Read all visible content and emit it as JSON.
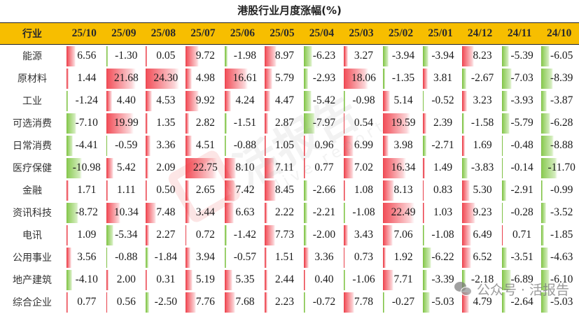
{
  "title": "港股行业月度涨幅(%)",
  "header": {
    "industry_label": "行业",
    "months": [
      "25/10",
      "25/09",
      "25/08",
      "25/07",
      "25/06",
      "25/05",
      "25/04",
      "25/03",
      "25/02",
      "25/01",
      "24/12",
      "24/11",
      "24/10"
    ]
  },
  "rows": [
    {
      "industry": "能源",
      "values": [
        "6.56",
        "-1.30",
        "0.05",
        "9.72",
        "-1.98",
        "8.97",
        "-6.23",
        "3.27",
        "-3.94",
        "-3.94",
        "8.23",
        "-5.39",
        "-6.05"
      ]
    },
    {
      "industry": "原材料",
      "values": [
        "1.44",
        "21.68",
        "24.30",
        "4.98",
        "16.61",
        "5.79",
        "-2.93",
        "18.06",
        "-1.35",
        "3.81",
        "-2.67",
        "-7.03",
        "-8.39"
      ]
    },
    {
      "industry": "工业",
      "values": [
        "-1.24",
        "4.40",
        "4.53",
        "9.92",
        "4.24",
        "4.47",
        "-5.42",
        "-0.98",
        "5.14",
        "-0.52",
        "3.23",
        "-3.93",
        "-3.87"
      ]
    },
    {
      "industry": "可选消费",
      "values": [
        "-7.10",
        "19.99",
        "1.35",
        "2.82",
        "-1.51",
        "2.87",
        "-7.97",
        "0.54",
        "19.59",
        "2.39",
        "-1.58",
        "-5.79",
        "-6.28"
      ]
    },
    {
      "industry": "日常消费",
      "values": [
        "-4.41",
        "-0.59",
        "3.36",
        "4.51",
        "-0.88",
        "1.05",
        "0.96",
        "6.99",
        "3.98",
        "-2.71",
        "1.69",
        "-0.48",
        "-8.88"
      ]
    },
    {
      "industry": "医疗保健",
      "values": [
        "-10.98",
        "5.42",
        "2.09",
        "22.75",
        "8.10",
        "7.11",
        "0.77",
        "7.02",
        "16.34",
        "1.49",
        "-3.83",
        "-0.14",
        "-11.70"
      ]
    },
    {
      "industry": "金融",
      "values": [
        "1.71",
        "1.11",
        "0.50",
        "2.65",
        "7.42",
        "8.45",
        "-2.66",
        "1.08",
        "8.13",
        "0.83",
        "5.30",
        "-2.91",
        "-0.99"
      ]
    },
    {
      "industry": "资讯科技",
      "values": [
        "-8.72",
        "10.34",
        "7.48",
        "3.44",
        "6.63",
        "2.22",
        "-2.21",
        "-1.08",
        "22.49",
        "1.03",
        "9.23",
        "-0.28",
        "-3.52"
      ]
    },
    {
      "industry": "电讯",
      "values": [
        "1.09",
        "-5.34",
        "2.27",
        "0.72",
        "-1.42",
        "7.73",
        "-2.00",
        "3.43",
        "7.06",
        "-1.08",
        "6.49",
        "0.71",
        "-1.85"
      ]
    },
    {
      "industry": "公用事业",
      "values": [
        "3.56",
        "-0.88",
        "-1.84",
        "3.94",
        "-0.57",
        "1.51",
        "3.36",
        "0.73",
        "1.92",
        "-6.22",
        "6.52",
        "-3.51",
        "-4.63"
      ]
    },
    {
      "industry": "地产建筑",
      "values": [
        "-4.10",
        "2.00",
        "0.31",
        "5.19",
        "5.35",
        "2.44",
        "0.40",
        "-1.06",
        "7.71",
        "-3.39",
        "-2.18",
        "-6.89",
        "-6.10"
      ]
    },
    {
      "industry": "综合企业",
      "values": [
        "0.77",
        "0.56",
        "-2.50",
        "7.76",
        "7.68",
        "2.23",
        "-0.72",
        "7.78",
        "-0.27",
        "-5.03",
        "4.79",
        "-2.64",
        "-5.03"
      ]
    }
  ],
  "colors": {
    "header_bg": "#F7BE00",
    "positive_bar": "#F2505A",
    "negative_bar": "#8CCB55"
  },
  "watermark": {
    "text": "活报告",
    "sub": "live report"
  },
  "footer": {
    "source_label": "公众号 · 活报告",
    "icon": "wechat-icon"
  }
}
